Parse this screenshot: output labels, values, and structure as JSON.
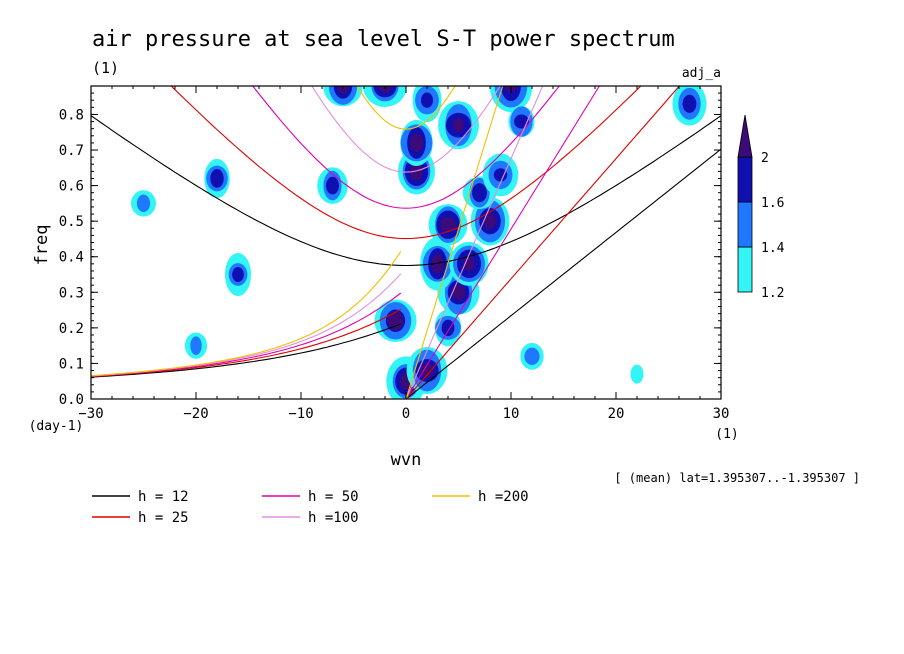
{
  "chart_data": {
    "type": "heatmap",
    "title": "air pressure at sea level S-T power spectrum",
    "subtitle_units": "(1)",
    "top_right_label": "adj_a",
    "xlabel": "wvn",
    "x_unit": "(1)",
    "ylabel": "freq",
    "y_unit": "(day-1)",
    "xlim": [
      -30,
      30
    ],
    "ylim": [
      0,
      0.88
    ],
    "x_ticks": [
      -30,
      -20,
      -10,
      0,
      10,
      20,
      30
    ],
    "y_ticks": [
      0.0,
      0.1,
      0.2,
      0.3,
      0.4,
      0.5,
      0.6,
      0.7,
      0.8
    ],
    "x_tick_labels": [
      "−30",
      "−20",
      "−10",
      "0",
      "10",
      "20",
      "30"
    ],
    "y_tick_labels": [
      "0.0",
      "0.1",
      "0.2",
      "0.3",
      "0.4",
      "0.5",
      "0.6",
      "0.7",
      "0.8"
    ],
    "note": "[ (mean) lat=1.395307..-1.395307 ]",
    "colorbar": {
      "levels": [
        1.2,
        1.4,
        1.6,
        2
      ],
      "level_labels": [
        "1.2",
        "1.4",
        "1.6",
        "2"
      ],
      "colors": [
        "#33f5f5",
        "#1f78ff",
        "#1010b0",
        "#3d0a7a"
      ]
    },
    "dispersion_curves": [
      {
        "label": "h = 12",
        "h": 12,
        "color": "#000000"
      },
      {
        "label": "h = 25",
        "h": 25,
        "color": "#e00000"
      },
      {
        "label": "h = 50",
        "h": 50,
        "color": "#e000b0"
      },
      {
        "label": "h =100",
        "h": 100,
        "color": "#e090e0"
      },
      {
        "label": "h =200",
        "h": 200,
        "color": "#f0c000"
      }
    ],
    "high_power_regions": [
      {
        "wvn": 0,
        "freq": 0.05,
        "level": 2
      },
      {
        "wvn": 2,
        "freq": 0.08,
        "level": 2
      },
      {
        "wvn": -1,
        "freq": 0.22,
        "level": 2
      },
      {
        "wvn": 4,
        "freq": 0.2,
        "level": 1.6
      },
      {
        "wvn": 5,
        "freq": 0.3,
        "level": 2
      },
      {
        "wvn": 3,
        "freq": 0.38,
        "level": 2
      },
      {
        "wvn": 6,
        "freq": 0.38,
        "level": 2
      },
      {
        "wvn": 4,
        "freq": 0.49,
        "level": 2
      },
      {
        "wvn": 8,
        "freq": 0.5,
        "level": 2
      },
      {
        "wvn": 7,
        "freq": 0.58,
        "level": 1.6
      },
      {
        "wvn": 9,
        "freq": 0.63,
        "level": 1.6
      },
      {
        "wvn": 1,
        "freq": 0.64,
        "level": 2
      },
      {
        "wvn": 1,
        "freq": 0.72,
        "level": 2
      },
      {
        "wvn": 5,
        "freq": 0.77,
        "level": 2
      },
      {
        "wvn": 10,
        "freq": 0.88,
        "level": 2
      },
      {
        "wvn": 11,
        "freq": 0.78,
        "level": 1.6
      },
      {
        "wvn": -6,
        "freq": 0.88,
        "level": 2
      },
      {
        "wvn": -2,
        "freq": 0.88,
        "level": 2
      },
      {
        "wvn": -7,
        "freq": 0.6,
        "level": 1.6
      },
      {
        "wvn": 2,
        "freq": 0.84,
        "level": 1.6
      },
      {
        "wvn": -16,
        "freq": 0.35,
        "level": 1.6
      },
      {
        "wvn": -18,
        "freq": 0.62,
        "level": 1.6
      },
      {
        "wvn": -20,
        "freq": 0.15,
        "level": 1.4
      },
      {
        "wvn": 12,
        "freq": 0.12,
        "level": 1.4
      },
      {
        "wvn": 22,
        "freq": 0.07,
        "level": 1.2
      },
      {
        "wvn": -25,
        "freq": 0.55,
        "level": 1.4
      },
      {
        "wvn": 27,
        "freq": 0.83,
        "level": 1.6
      }
    ]
  }
}
